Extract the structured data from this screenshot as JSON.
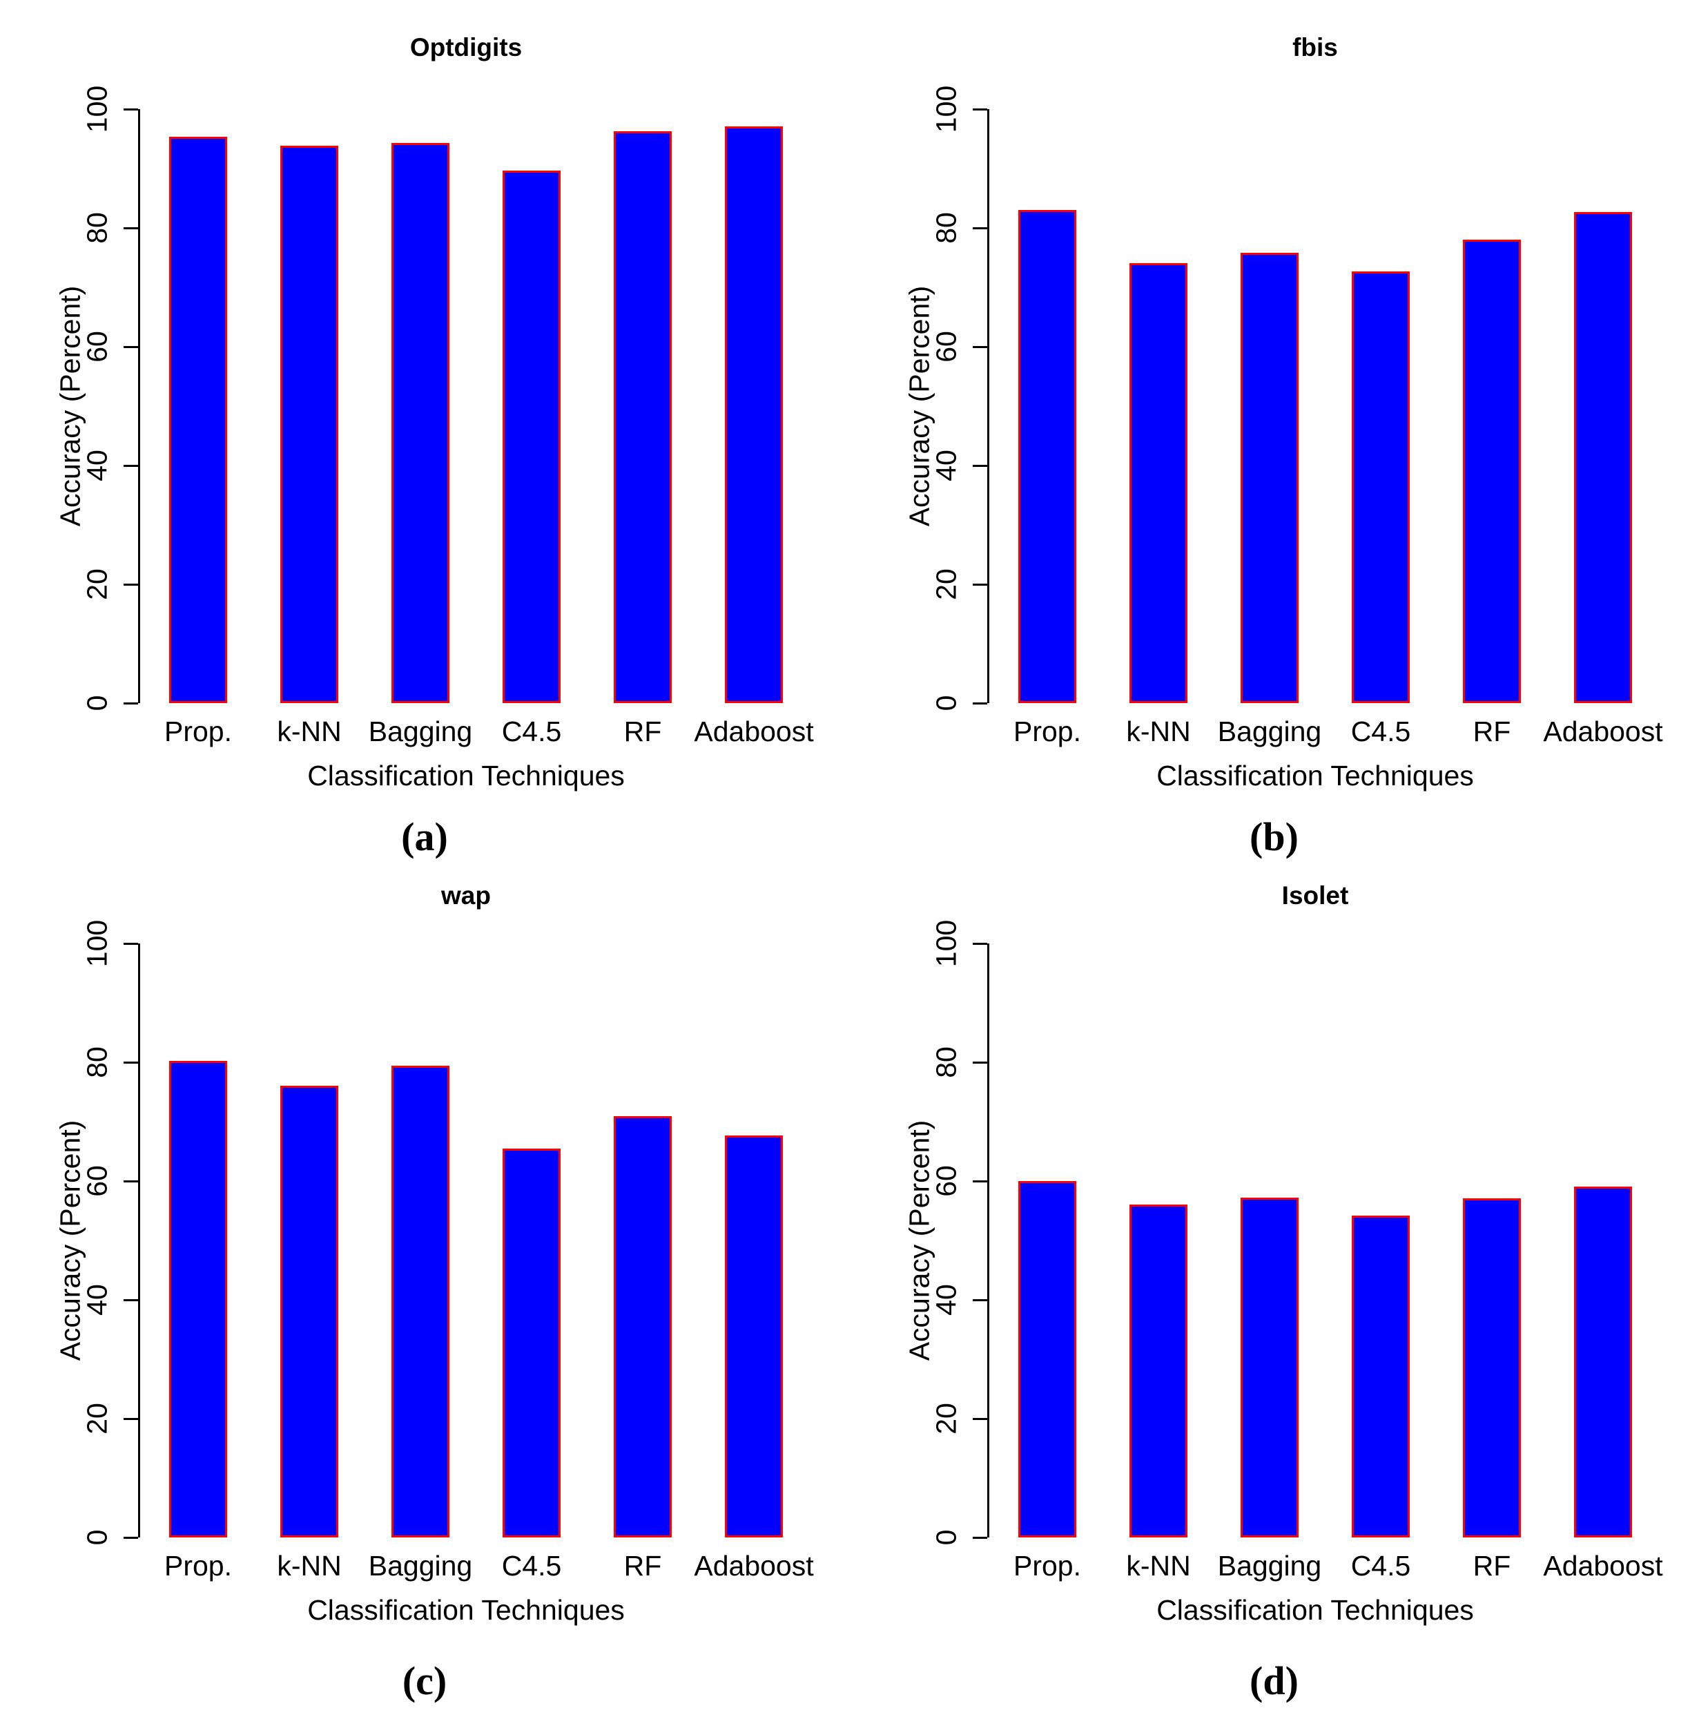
{
  "figure": {
    "background": "#FFFFFF",
    "bar_fill": "#0000FF",
    "bar_border": "#FF0000",
    "axis_color": "#000000",
    "text_color": "#000000"
  },
  "chart_data": [
    {
      "type": "bar",
      "panel_label": "(a)",
      "title": "Optdigits",
      "categories": [
        "Prop.",
        "k-NN",
        "Bagging",
        "C4.5",
        "RF",
        "Adaboost"
      ],
      "values": [
        95.4,
        93.8,
        94.3,
        89.7,
        96.3,
        97.1
      ],
      "xlabel": "Classification Techniques",
      "ylabel": "Accuracy (Percent)",
      "ylim": [
        0,
        100
      ],
      "yticks": [
        0,
        20,
        40,
        60,
        80,
        100
      ],
      "grid": false,
      "legend": false
    },
    {
      "type": "bar",
      "panel_label": "(b)",
      "title": "fbis",
      "categories": [
        "Prop.",
        "k-NN",
        "Bagging",
        "C4.5",
        "RF",
        "Adaboost"
      ],
      "values": [
        83.0,
        74.1,
        75.8,
        72.7,
        78.0,
        82.7
      ],
      "xlabel": "Classification Techniques",
      "ylabel": "Accuracy (Percent)",
      "ylim": [
        0,
        100
      ],
      "yticks": [
        0,
        20,
        40,
        60,
        80,
        100
      ],
      "grid": false,
      "legend": false
    },
    {
      "type": "bar",
      "panel_label": "(c)",
      "title": "wap",
      "categories": [
        "Prop.",
        "k-NN",
        "Bagging",
        "C4.5",
        "RF",
        "Adaboost"
      ],
      "values": [
        80.2,
        76.1,
        79.4,
        65.5,
        70.9,
        67.7
      ],
      "xlabel": "Classification Techniques",
      "ylabel": "Accuracy (Percent)",
      "ylim": [
        0,
        100
      ],
      "yticks": [
        0,
        20,
        40,
        60,
        80,
        100
      ],
      "grid": false,
      "legend": false
    },
    {
      "type": "bar",
      "panel_label": "(d)",
      "title": "Isolet",
      "categories": [
        "Prop.",
        "k-NN",
        "Bagging",
        "C4.5",
        "RF",
        "Adaboost"
      ],
      "values": [
        60.0,
        56.1,
        57.2,
        54.2,
        57.1,
        59.1
      ],
      "xlabel": "Classification Techniques",
      "ylabel": "Accuracy (Percent)",
      "ylim": [
        0,
        100
      ],
      "yticks": [
        0,
        20,
        40,
        60,
        80,
        100
      ],
      "grid": false,
      "legend": false
    }
  ]
}
